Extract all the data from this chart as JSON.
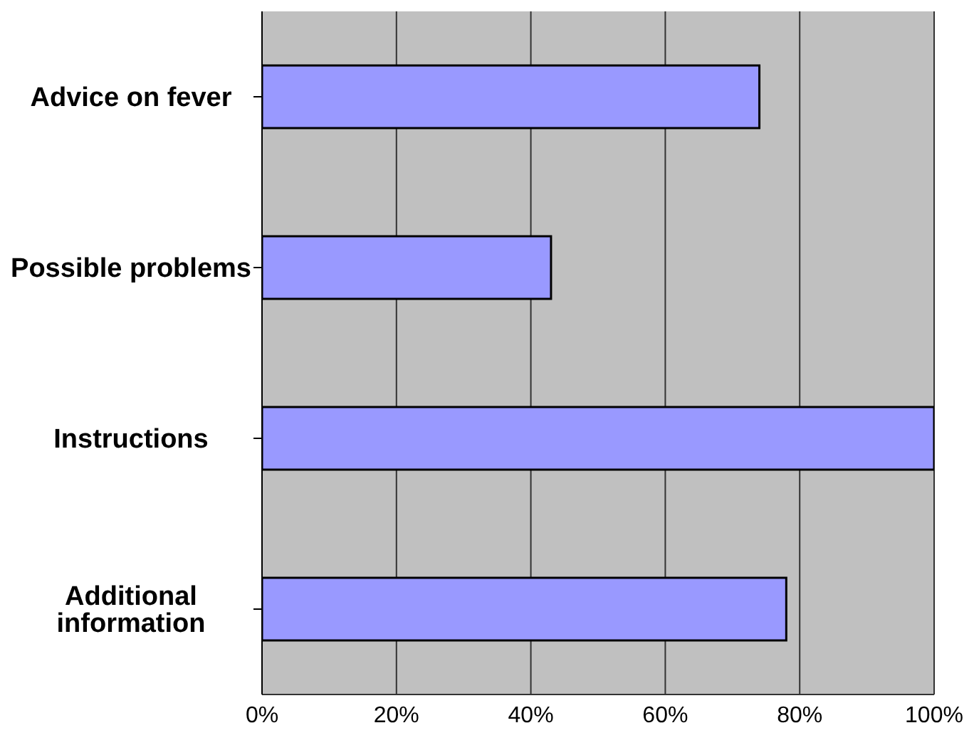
{
  "chart_data": {
    "type": "bar",
    "orientation": "horizontal",
    "categories": [
      "Advice on fever",
      "Possible problems",
      "Instructions",
      "Additional information"
    ],
    "values": [
      74,
      43,
      100,
      78
    ],
    "color": "#9999ff",
    "xlim": [
      0,
      100
    ],
    "xticks": [
      {
        "value": 0,
        "label": "0%"
      },
      {
        "value": 20,
        "label": "20%"
      },
      {
        "value": 40,
        "label": "40%"
      },
      {
        "value": 60,
        "label": "60%"
      },
      {
        "value": 80,
        "label": "80%"
      },
      {
        "value": 100,
        "label": "100%"
      }
    ],
    "grid": "x",
    "legend": false
  }
}
